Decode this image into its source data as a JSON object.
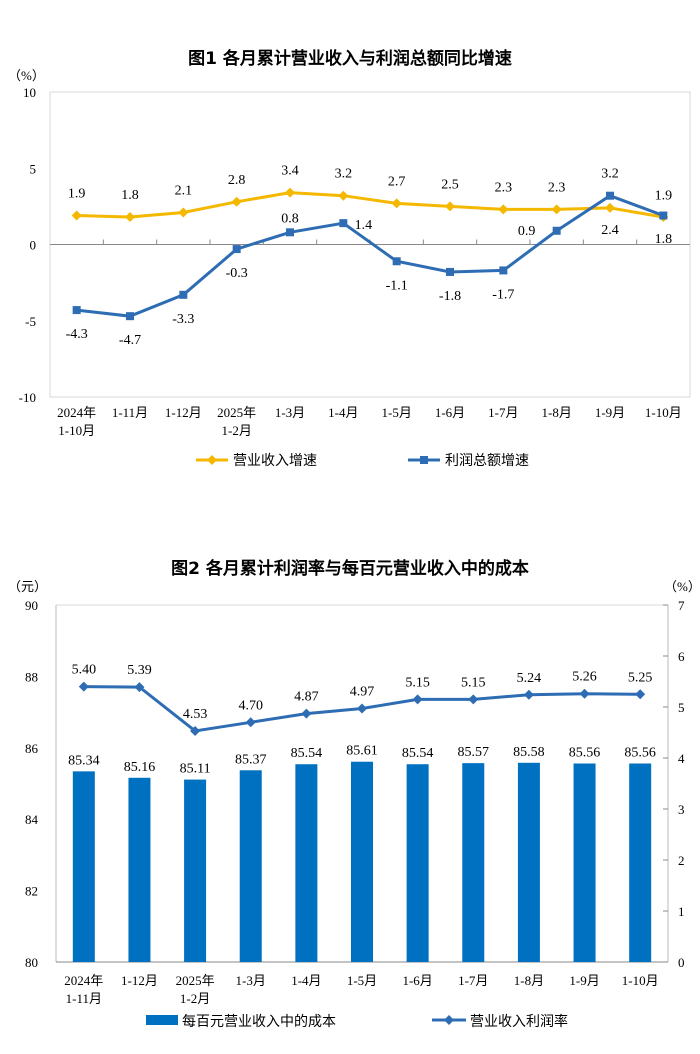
{
  "chart_data": [
    {
      "type": "line",
      "title": "图1  各月累计营业收入与利润总额同比增速",
      "ylabel": "（%）",
      "ylim": [
        -10,
        10
      ],
      "yticks": [
        10,
        5,
        0,
        -5,
        -10
      ],
      "categories": [
        "2024年\n1-10月",
        "1-11月",
        "1-12月",
        "2025年\n1-2月",
        "1-3月",
        "1-4月",
        "1-5月",
        "1-6月",
        "1-7月",
        "1-8月",
        "1-9月",
        "1-10月"
      ],
      "series": [
        {
          "name": "营业收入增速",
          "color": "#F5B800",
          "marker": "diamond",
          "values": [
            1.9,
            1.8,
            2.1,
            2.8,
            3.4,
            3.2,
            2.7,
            2.5,
            2.3,
            2.3,
            2.4,
            1.8
          ]
        },
        {
          "name": "利润总额增速",
          "color": "#2E6DB4",
          "marker": "square",
          "values": [
            -4.3,
            -4.7,
            -3.3,
            -0.3,
            0.8,
            1.4,
            -1.1,
            -1.8,
            -1.7,
            0.9,
            3.2,
            1.9
          ]
        }
      ],
      "grid": false,
      "legend": "bottom"
    },
    {
      "type": "bar+line",
      "title": "图2  各月累计利润率与每百元营业收入中的成本",
      "ylabel_left": "（元）",
      "ylabel_right": "（%）",
      "ylim_left": [
        80,
        90
      ],
      "ylim_right": [
        0,
        7
      ],
      "yticks_left": [
        90,
        88,
        86,
        84,
        82,
        80
      ],
      "yticks_right": [
        7,
        6,
        5,
        4,
        3,
        2,
        1,
        0
      ],
      "categories": [
        "2024年\n1-11月",
        "1-12月",
        "2025年\n1-2月",
        "1-3月",
        "1-4月",
        "1-5月",
        "1-6月",
        "1-7月",
        "1-8月",
        "1-9月",
        "1-10月"
      ],
      "series": [
        {
          "name": "每百元营业收入中的成本",
          "type": "bar",
          "axis": "left",
          "color": "#0070C0",
          "values": [
            "85.34",
            "85.16",
            "85.11",
            "85.37",
            "85.54",
            "85.61",
            "85.54",
            "85.57",
            "85.58",
            "85.56",
            "85.56"
          ]
        },
        {
          "name": "营业收入利润率",
          "type": "line",
          "axis": "right",
          "color": "#2E6DB4",
          "marker": "diamond",
          "values": [
            "5.40",
            "5.39",
            "4.53",
            "4.70",
            "4.87",
            "4.97",
            "5.15",
            "5.15",
            "5.24",
            "5.26",
            "5.25"
          ]
        }
      ],
      "grid": false,
      "legend": "bottom"
    }
  ]
}
